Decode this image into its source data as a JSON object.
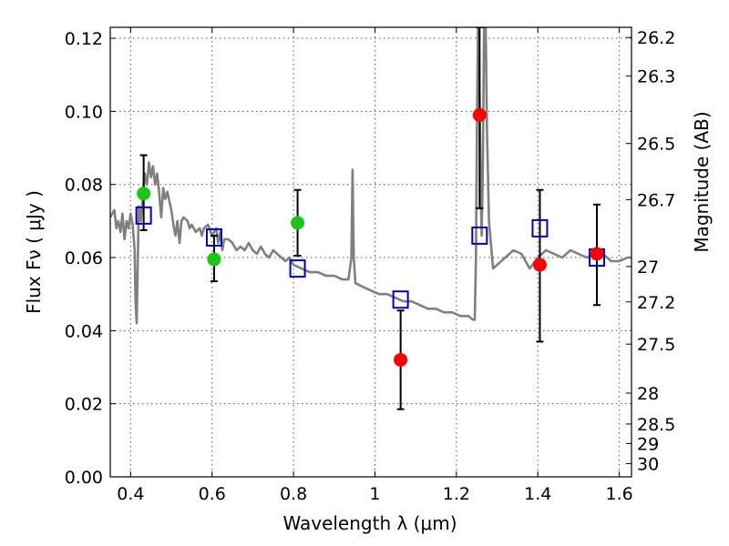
{
  "chart_data": {
    "type": "scatter",
    "xlabel": "Wavelength  λ (μm)",
    "ylabel": "Flux  Fν  ( μJy )",
    "y2label": "Magnitude (AB)",
    "xlim": [
      0.35,
      1.63
    ],
    "ylim": [
      0.0,
      0.123
    ],
    "grid": true,
    "x_ticks": [
      0.4,
      0.6,
      0.8,
      1.0,
      1.2,
      1.4,
      1.6
    ],
    "x_tick_labels": [
      "0.4",
      "0.6",
      "0.8",
      "1",
      "1.2",
      "1.4",
      "1.6"
    ],
    "y_ticks": [
      0.0,
      0.02,
      0.04,
      0.06,
      0.08,
      0.1,
      0.12
    ],
    "y_tick_labels": [
      "0.00",
      "0.02",
      "0.04",
      "0.06",
      "0.08",
      "0.10",
      "0.12"
    ],
    "mag_ticks": [
      26.2,
      26.3,
      26.5,
      26.7,
      27,
      27.2,
      27.5,
      28,
      28.5,
      29,
      30
    ],
    "mag_tick_labels": [
      "26.2",
      "26.3",
      "26.5",
      "26.7",
      "27",
      "27.2",
      "27.5",
      "28",
      "28.5",
      "29",
      "30"
    ],
    "series": [
      {
        "name": "model spectrum",
        "kind": "line",
        "color": "#808080",
        "points": [
          [
            0.35,
            0.071
          ],
          [
            0.36,
            0.073
          ],
          [
            0.365,
            0.068
          ],
          [
            0.37,
            0.07
          ],
          [
            0.375,
            0.067
          ],
          [
            0.38,
            0.072
          ],
          [
            0.385,
            0.065
          ],
          [
            0.39,
            0.07
          ],
          [
            0.395,
            0.068
          ],
          [
            0.4,
            0.072
          ],
          [
            0.405,
            0.069
          ],
          [
            0.41,
            0.062
          ],
          [
            0.412,
            0.048
          ],
          [
            0.415,
            0.042
          ],
          [
            0.418,
            0.062
          ],
          [
            0.42,
            0.074
          ],
          [
            0.425,
            0.07
          ],
          [
            0.43,
            0.077
          ],
          [
            0.435,
            0.083
          ],
          [
            0.44,
            0.08
          ],
          [
            0.445,
            0.086
          ],
          [
            0.45,
            0.082
          ],
          [
            0.455,
            0.085
          ],
          [
            0.46,
            0.08
          ],
          [
            0.465,
            0.083
          ],
          [
            0.47,
            0.078
          ],
          [
            0.475,
            0.071
          ],
          [
            0.48,
            0.079
          ],
          [
            0.485,
            0.076
          ],
          [
            0.49,
            0.078
          ],
          [
            0.5,
            0.073
          ],
          [
            0.505,
            0.069
          ],
          [
            0.51,
            0.066
          ],
          [
            0.515,
            0.07
          ],
          [
            0.52,
            0.064
          ],
          [
            0.525,
            0.07
          ],
          [
            0.53,
            0.071
          ],
          [
            0.54,
            0.07
          ],
          [
            0.545,
            0.068
          ],
          [
            0.55,
            0.069
          ],
          [
            0.56,
            0.067
          ],
          [
            0.57,
            0.068
          ],
          [
            0.575,
            0.066
          ],
          [
            0.58,
            0.068
          ],
          [
            0.59,
            0.069
          ],
          [
            0.6,
            0.066
          ],
          [
            0.61,
            0.068
          ],
          [
            0.615,
            0.064
          ],
          [
            0.62,
            0.067
          ],
          [
            0.625,
            0.062
          ],
          [
            0.63,
            0.065
          ],
          [
            0.64,
            0.065
          ],
          [
            0.65,
            0.064
          ],
          [
            0.66,
            0.062
          ],
          [
            0.67,
            0.063
          ],
          [
            0.68,
            0.062
          ],
          [
            0.69,
            0.064
          ],
          [
            0.7,
            0.062
          ],
          [
            0.71,
            0.061
          ],
          [
            0.72,
            0.063
          ],
          [
            0.73,
            0.061
          ],
          [
            0.74,
            0.06
          ],
          [
            0.75,
            0.062
          ],
          [
            0.76,
            0.061
          ],
          [
            0.77,
            0.06
          ],
          [
            0.78,
            0.059
          ],
          [
            0.79,
            0.06
          ],
          [
            0.8,
            0.058
          ],
          [
            0.82,
            0.057
          ],
          [
            0.84,
            0.056
          ],
          [
            0.86,
            0.056
          ],
          [
            0.88,
            0.055
          ],
          [
            0.9,
            0.055
          ],
          [
            0.92,
            0.054
          ],
          [
            0.935,
            0.054
          ],
          [
            0.942,
            0.06
          ],
          [
            0.945,
            0.084
          ],
          [
            0.948,
            0.06
          ],
          [
            0.952,
            0.053
          ],
          [
            0.97,
            0.052
          ],
          [
            0.99,
            0.051
          ],
          [
            1.01,
            0.05
          ],
          [
            1.03,
            0.05
          ],
          [
            1.05,
            0.049
          ],
          [
            1.07,
            0.048
          ],
          [
            1.09,
            0.048
          ],
          [
            1.11,
            0.047
          ],
          [
            1.13,
            0.046
          ],
          [
            1.15,
            0.046
          ],
          [
            1.17,
            0.045
          ],
          [
            1.19,
            0.045
          ],
          [
            1.21,
            0.044
          ],
          [
            1.23,
            0.044
          ],
          [
            1.24,
            0.043
          ],
          [
            1.245,
            0.043
          ],
          [
            1.248,
            0.06
          ],
          [
            1.25,
            0.09
          ],
          [
            1.253,
            0.123
          ],
          [
            1.255,
            0.123
          ],
          [
            1.258,
            0.095
          ],
          [
            1.26,
            0.075
          ],
          [
            1.262,
            0.066
          ],
          [
            1.265,
            0.085
          ],
          [
            1.268,
            0.123
          ],
          [
            1.272,
            0.123
          ],
          [
            1.275,
            0.095
          ],
          [
            1.28,
            0.07
          ],
          [
            1.29,
            0.057
          ],
          [
            1.3,
            0.058
          ],
          [
            1.32,
            0.06
          ],
          [
            1.34,
            0.062
          ],
          [
            1.36,
            0.061
          ],
          [
            1.38,
            0.057
          ],
          [
            1.4,
            0.06
          ],
          [
            1.42,
            0.062
          ],
          [
            1.44,
            0.061
          ],
          [
            1.46,
            0.06
          ],
          [
            1.48,
            0.062
          ],
          [
            1.5,
            0.061
          ],
          [
            1.52,
            0.06
          ],
          [
            1.54,
            0.061
          ],
          [
            1.56,
            0.061
          ],
          [
            1.58,
            0.059
          ],
          [
            1.6,
            0.059
          ],
          [
            1.62,
            0.06
          ],
          [
            1.63,
            0.06
          ]
        ]
      },
      {
        "name": "green points",
        "kind": "marker",
        "color": "#19c619",
        "points": [
          [
            0.432,
            0.0775
          ],
          [
            0.605,
            0.0595
          ],
          [
            0.81,
            0.0695
          ]
        ]
      },
      {
        "name": "red points",
        "kind": "marker",
        "color": "#ff0000",
        "points": [
          [
            1.063,
            0.032
          ],
          [
            1.257,
            0.099
          ],
          [
            1.405,
            0.058
          ],
          [
            1.545,
            0.061
          ]
        ]
      },
      {
        "name": "blue model squares",
        "kind": "square",
        "color": "#0000cc",
        "points": [
          [
            0.432,
            0.0715
          ],
          [
            0.605,
            0.0655
          ],
          [
            0.81,
            0.057
          ],
          [
            1.063,
            0.0485
          ],
          [
            1.257,
            0.066
          ],
          [
            1.405,
            0.068
          ],
          [
            1.545,
            0.06
          ]
        ]
      },
      {
        "name": "error bars",
        "kind": "errorbar",
        "color": "#000000",
        "bars": [
          [
            0.432,
            0.0675,
            0.088
          ],
          [
            0.605,
            0.0535,
            0.066
          ],
          [
            0.81,
            0.0605,
            0.0785
          ],
          [
            1.063,
            0.0185,
            0.0455
          ],
          [
            1.257,
            0.0735,
            0.123
          ],
          [
            1.405,
            0.037,
            0.0785
          ],
          [
            1.545,
            0.047,
            0.0745
          ]
        ]
      }
    ]
  }
}
